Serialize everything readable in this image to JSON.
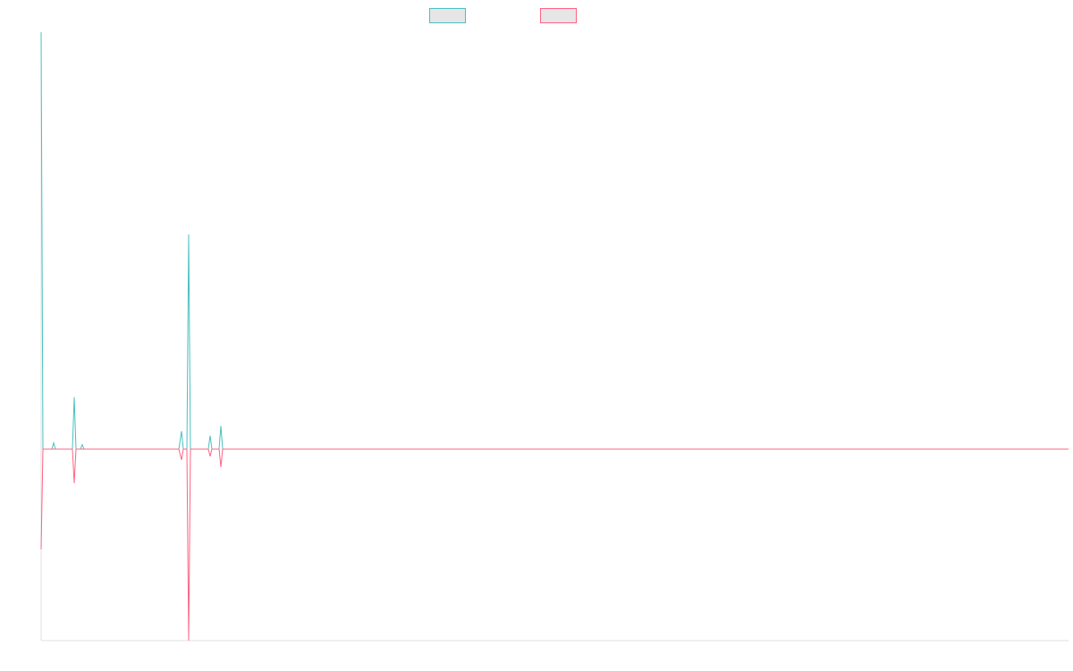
{
  "chart_data": {
    "type": "line",
    "x": [
      0,
      2,
      12,
      14,
      16,
      35,
      37,
      39,
      44,
      46,
      48,
      154,
      157,
      159,
      163,
      165,
      167,
      187,
      189,
      191,
      199,
      201,
      203,
      1149
    ],
    "series": [
      {
        "color": "#4bc0c0",
        "values": [
          466,
          0,
          0,
          7,
          0,
          0,
          58,
          0,
          0,
          5,
          0,
          0,
          20,
          0,
          0,
          240,
          0,
          0,
          15,
          0,
          0,
          26,
          0,
          0
        ]
      },
      {
        "color": "#ff6384",
        "values": [
          -112,
          0,
          0,
          0,
          0,
          0,
          -38,
          0,
          0,
          0,
          0,
          0,
          -12,
          0,
          0,
          -214,
          0,
          0,
          -8,
          0,
          0,
          -20,
          0,
          0
        ]
      }
    ],
    "xlim": [
      0,
      1149
    ],
    "ylim": [
      -214,
      466
    ]
  }
}
